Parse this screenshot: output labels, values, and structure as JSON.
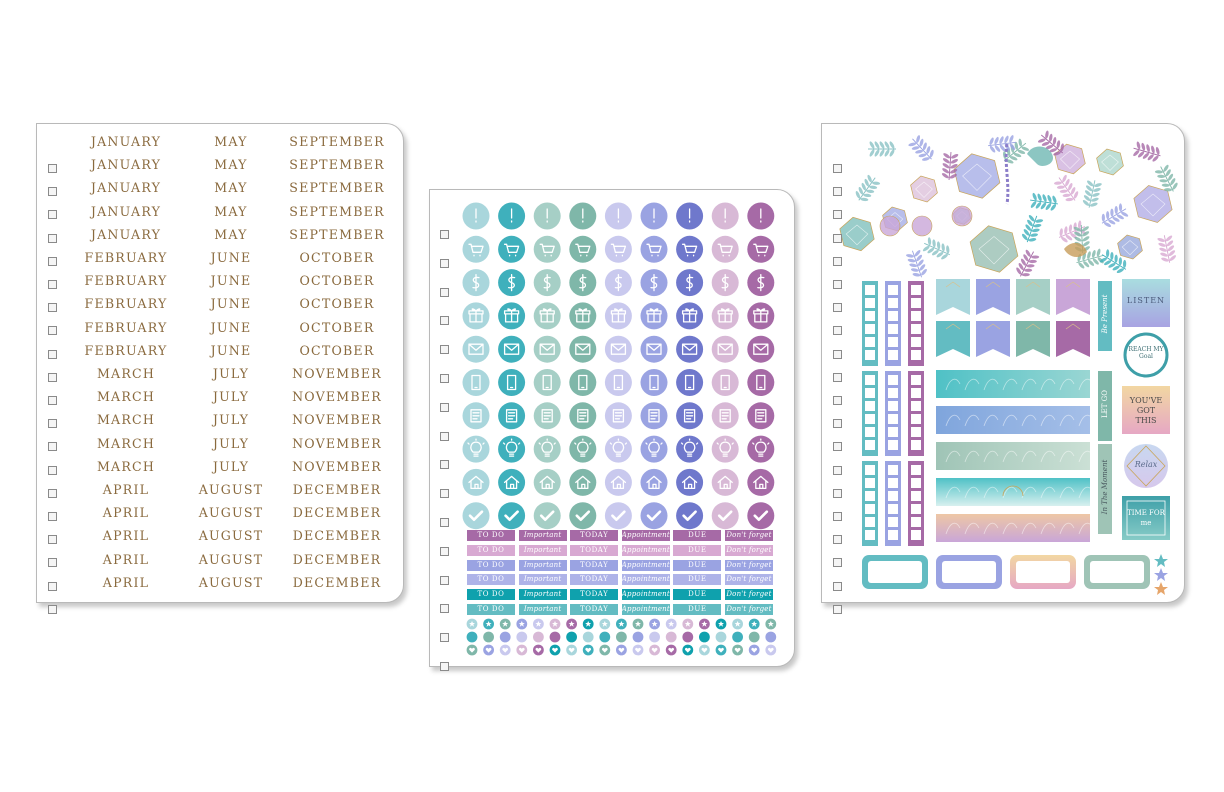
{
  "sheet1": {
    "columns": [
      [
        "JANUARY",
        "JANUARY",
        "JANUARY",
        "JANUARY",
        "JANUARY",
        "FEBRUARY",
        "FEBRUARY",
        "FEBRUARY",
        "FEBRUARY",
        "FEBRUARY",
        "MARCH",
        "MARCH",
        "MARCH",
        "MARCH",
        "MARCH",
        "APRIL",
        "APRIL",
        "APRIL",
        "APRIL",
        "APRIL"
      ],
      [
        "MAY",
        "MAY",
        "MAY",
        "MAY",
        "MAY",
        "JUNE",
        "JUNE",
        "JUNE",
        "JUNE",
        "JUNE",
        "JULY",
        "JULY",
        "JULY",
        "JULY",
        "JULY",
        "AUGUST",
        "AUGUST",
        "AUGUST",
        "AUGUST",
        "AUGUST"
      ],
      [
        "SEPTEMBER",
        "SEPTEMBER",
        "SEPTEMBER",
        "SEPTEMBER",
        "SEPTEMBER",
        "OCTOBER",
        "OCTOBER",
        "OCTOBER",
        "OCTOBER",
        "OCTOBER",
        "NOVEMBER",
        "NOVEMBER",
        "NOVEMBER",
        "NOVEMBER",
        "NOVEMBER",
        "DECEMBER",
        "DECEMBER",
        "DECEMBER",
        "DECEMBER",
        "DECEMBER"
      ]
    ]
  },
  "sheet2": {
    "icon_rows": [
      "exclamation-icon",
      "cart-icon",
      "dollar-icon",
      "gift-icon",
      "envelope-icon",
      "phone-icon",
      "receipt-icon",
      "lightbulb-icon",
      "house-icon",
      "check-icon"
    ],
    "palette": [
      "#a9d6dc",
      "#3fb0bc",
      "#a6cfc6",
      "#7fb7a9",
      "#c9c9ee",
      "#9aa3e2",
      "#6f78cc",
      "#d8b9d6",
      "#a66aa6"
    ],
    "labels": [
      "TO DO",
      "Important",
      "TODAY",
      "Appointment",
      "DUE",
      "Don't forget"
    ],
    "label_italic": [
      false,
      true,
      false,
      true,
      false,
      true
    ],
    "label_colors": [
      "#a66aa6",
      "#d8a9d2",
      "#9aa3e2",
      "#aeb3e8",
      "#0fa1ad",
      "#63bcc2"
    ]
  },
  "sheet3": {
    "listen": "LISTEN",
    "reach": "REACH MY Goal",
    "got_this": "YOU'VE GOT THIS",
    "relax": "Relax",
    "time_for_me": "TIME FOR me",
    "be_present": "Be Present",
    "let_go": "LET GO",
    "in_the_moment": "In The Moment"
  }
}
